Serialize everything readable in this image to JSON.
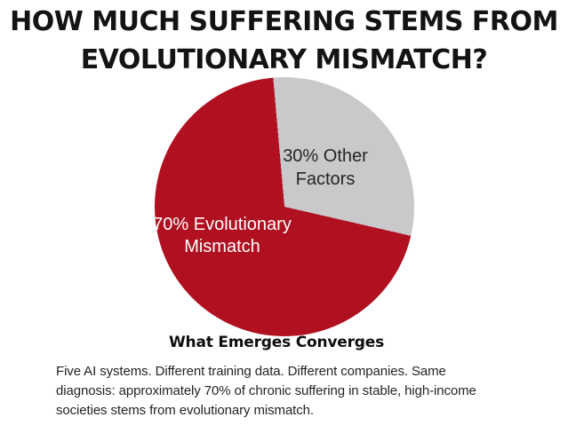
{
  "header": {
    "title_line1": "HOW MUCH SUFFERING STEMS FROM",
    "title_line2": "EVOLUTIONARY MISMATCH?"
  },
  "chart_data": {
    "type": "pie",
    "title": "HOW MUCH SUFFERING STEMS FROM EVOLUTIONARY MISMATCH?",
    "caption": "What Emerges Converges",
    "start_angle_deg": -5,
    "slices": [
      {
        "name": "Evolutionary Mismatch",
        "value": 70,
        "unit": "%",
        "color": "#B01020",
        "label": "70% Evolutionary\nMismatch",
        "label_color": "#FFFFFF"
      },
      {
        "name": "Other Factors",
        "value": 30,
        "unit": "%",
        "color": "#C9C8CB",
        "label": "30% Other\nFactors",
        "label_color": "#262626"
      }
    ],
    "legend": "none",
    "background": "#FFFFFF"
  },
  "footer": {
    "text": "Five AI systems. Different training data. Different companies. Same\ndiagnosis: approximately 70% of chronic suffering in stable, high-income\nsocieties stems from evolutionary mismatch."
  }
}
